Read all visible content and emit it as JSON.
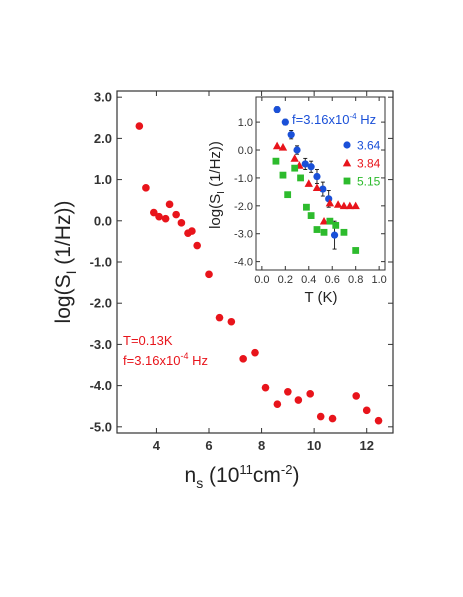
{
  "chart_data": [
    {
      "type": "scatter",
      "xlabel": {
        "main": "n",
        "sub": "s",
        "units": " (10",
        "sup": "11",
        "units2": "cm",
        "sup2": "-2",
        "close": ")"
      },
      "ylabel": {
        "main": "log(S",
        "sub": "I",
        "units": " (1/Hz))"
      },
      "xlim": [
        2.5,
        13.0
      ],
      "ylim": [
        -5.15,
        3.15
      ],
      "xticks": [
        "4",
        "6",
        "8",
        "10",
        "12"
      ],
      "yticks": [
        "3.0",
        "2.0",
        "1.0",
        "0.0",
        "-1.0",
        "-2.0",
        "-3.0",
        "-4.0",
        "-5.0"
      ],
      "annotation": {
        "line1": "T=0.13K",
        "line2_main": "f=3.16x10",
        "line2_sup": "-4",
        "line2_unit": " Hz"
      },
      "color": "#e8141b",
      "series": [
        {
          "x": [
            3.35,
            3.6,
            3.9,
            4.1,
            4.35,
            4.5,
            4.75,
            4.95,
            5.2,
            5.35,
            5.55,
            6.0,
            6.4,
            6.85,
            7.3,
            7.75,
            8.15,
            8.6,
            9.0,
            9.4,
            9.85,
            10.25,
            10.7,
            11.6,
            12.0,
            12.45
          ],
          "y": [
            2.3,
            0.8,
            0.2,
            0.1,
            0.05,
            0.4,
            0.15,
            -0.05,
            -0.3,
            -0.25,
            -0.6,
            -1.3,
            -2.35,
            -2.45,
            -3.35,
            -3.2,
            -4.05,
            -4.45,
            -4.15,
            -4.35,
            -4.2,
            -4.75,
            -4.8,
            -4.25,
            -4.6,
            -4.85
          ]
        }
      ]
    },
    {
      "type": "scatter",
      "xlabel": "T (K)",
      "ylabel": {
        "main": "log(S",
        "sub": "I",
        "units": " (1/Hz))"
      },
      "xlim": [
        -0.05,
        1.05
      ],
      "ylim": [
        -4.3,
        1.9
      ],
      "xticks": [
        "0.0",
        "0.2",
        "0.4",
        "0.6",
        "0.8",
        "1.0"
      ],
      "yticks": [
        "1.0",
        "0.0",
        "-1.0",
        "-2.0",
        "-3.0",
        "-4.0"
      ],
      "annotation": {
        "main": "f=3.16x10",
        "sup": "-4",
        "unit": " Hz"
      },
      "series": [
        {
          "name": "3.64",
          "color": "#1a50d8",
          "marker": "circle",
          "x": [
            0.13,
            0.2,
            0.25,
            0.3,
            0.37,
            0.42,
            0.47,
            0.52,
            0.57,
            0.62
          ],
          "y": [
            1.45,
            1.0,
            0.55,
            0.0,
            -0.5,
            -0.6,
            -0.95,
            -1.4,
            -1.75,
            -3.05
          ],
          "err": [
            0.1,
            0.1,
            0.15,
            0.15,
            0.2,
            0.2,
            0.25,
            0.25,
            0.3,
            0.5
          ]
        },
        {
          "name": "3.84",
          "color": "#e8141b",
          "marker": "triangle",
          "x": [
            0.13,
            0.18,
            0.28,
            0.32,
            0.4,
            0.47,
            0.53,
            0.58,
            0.65,
            0.7,
            0.75,
            0.8
          ],
          "y": [
            0.15,
            0.1,
            -0.3,
            -0.55,
            -1.2,
            -1.35,
            -2.55,
            -1.9,
            -1.95,
            -2.0,
            -2.0,
            -2.0
          ]
        },
        {
          "name": "5.15",
          "color": "#2dbb2d",
          "marker": "square",
          "x": [
            0.12,
            0.18,
            0.22,
            0.28,
            0.33,
            0.38,
            0.42,
            0.47,
            0.53,
            0.58,
            0.63,
            0.7,
            0.8
          ],
          "y": [
            -0.4,
            -0.9,
            -1.6,
            -0.65,
            -1.0,
            -2.05,
            -2.35,
            -2.85,
            -2.95,
            -2.55,
            -2.7,
            -2.95,
            -3.6
          ]
        }
      ]
    }
  ]
}
